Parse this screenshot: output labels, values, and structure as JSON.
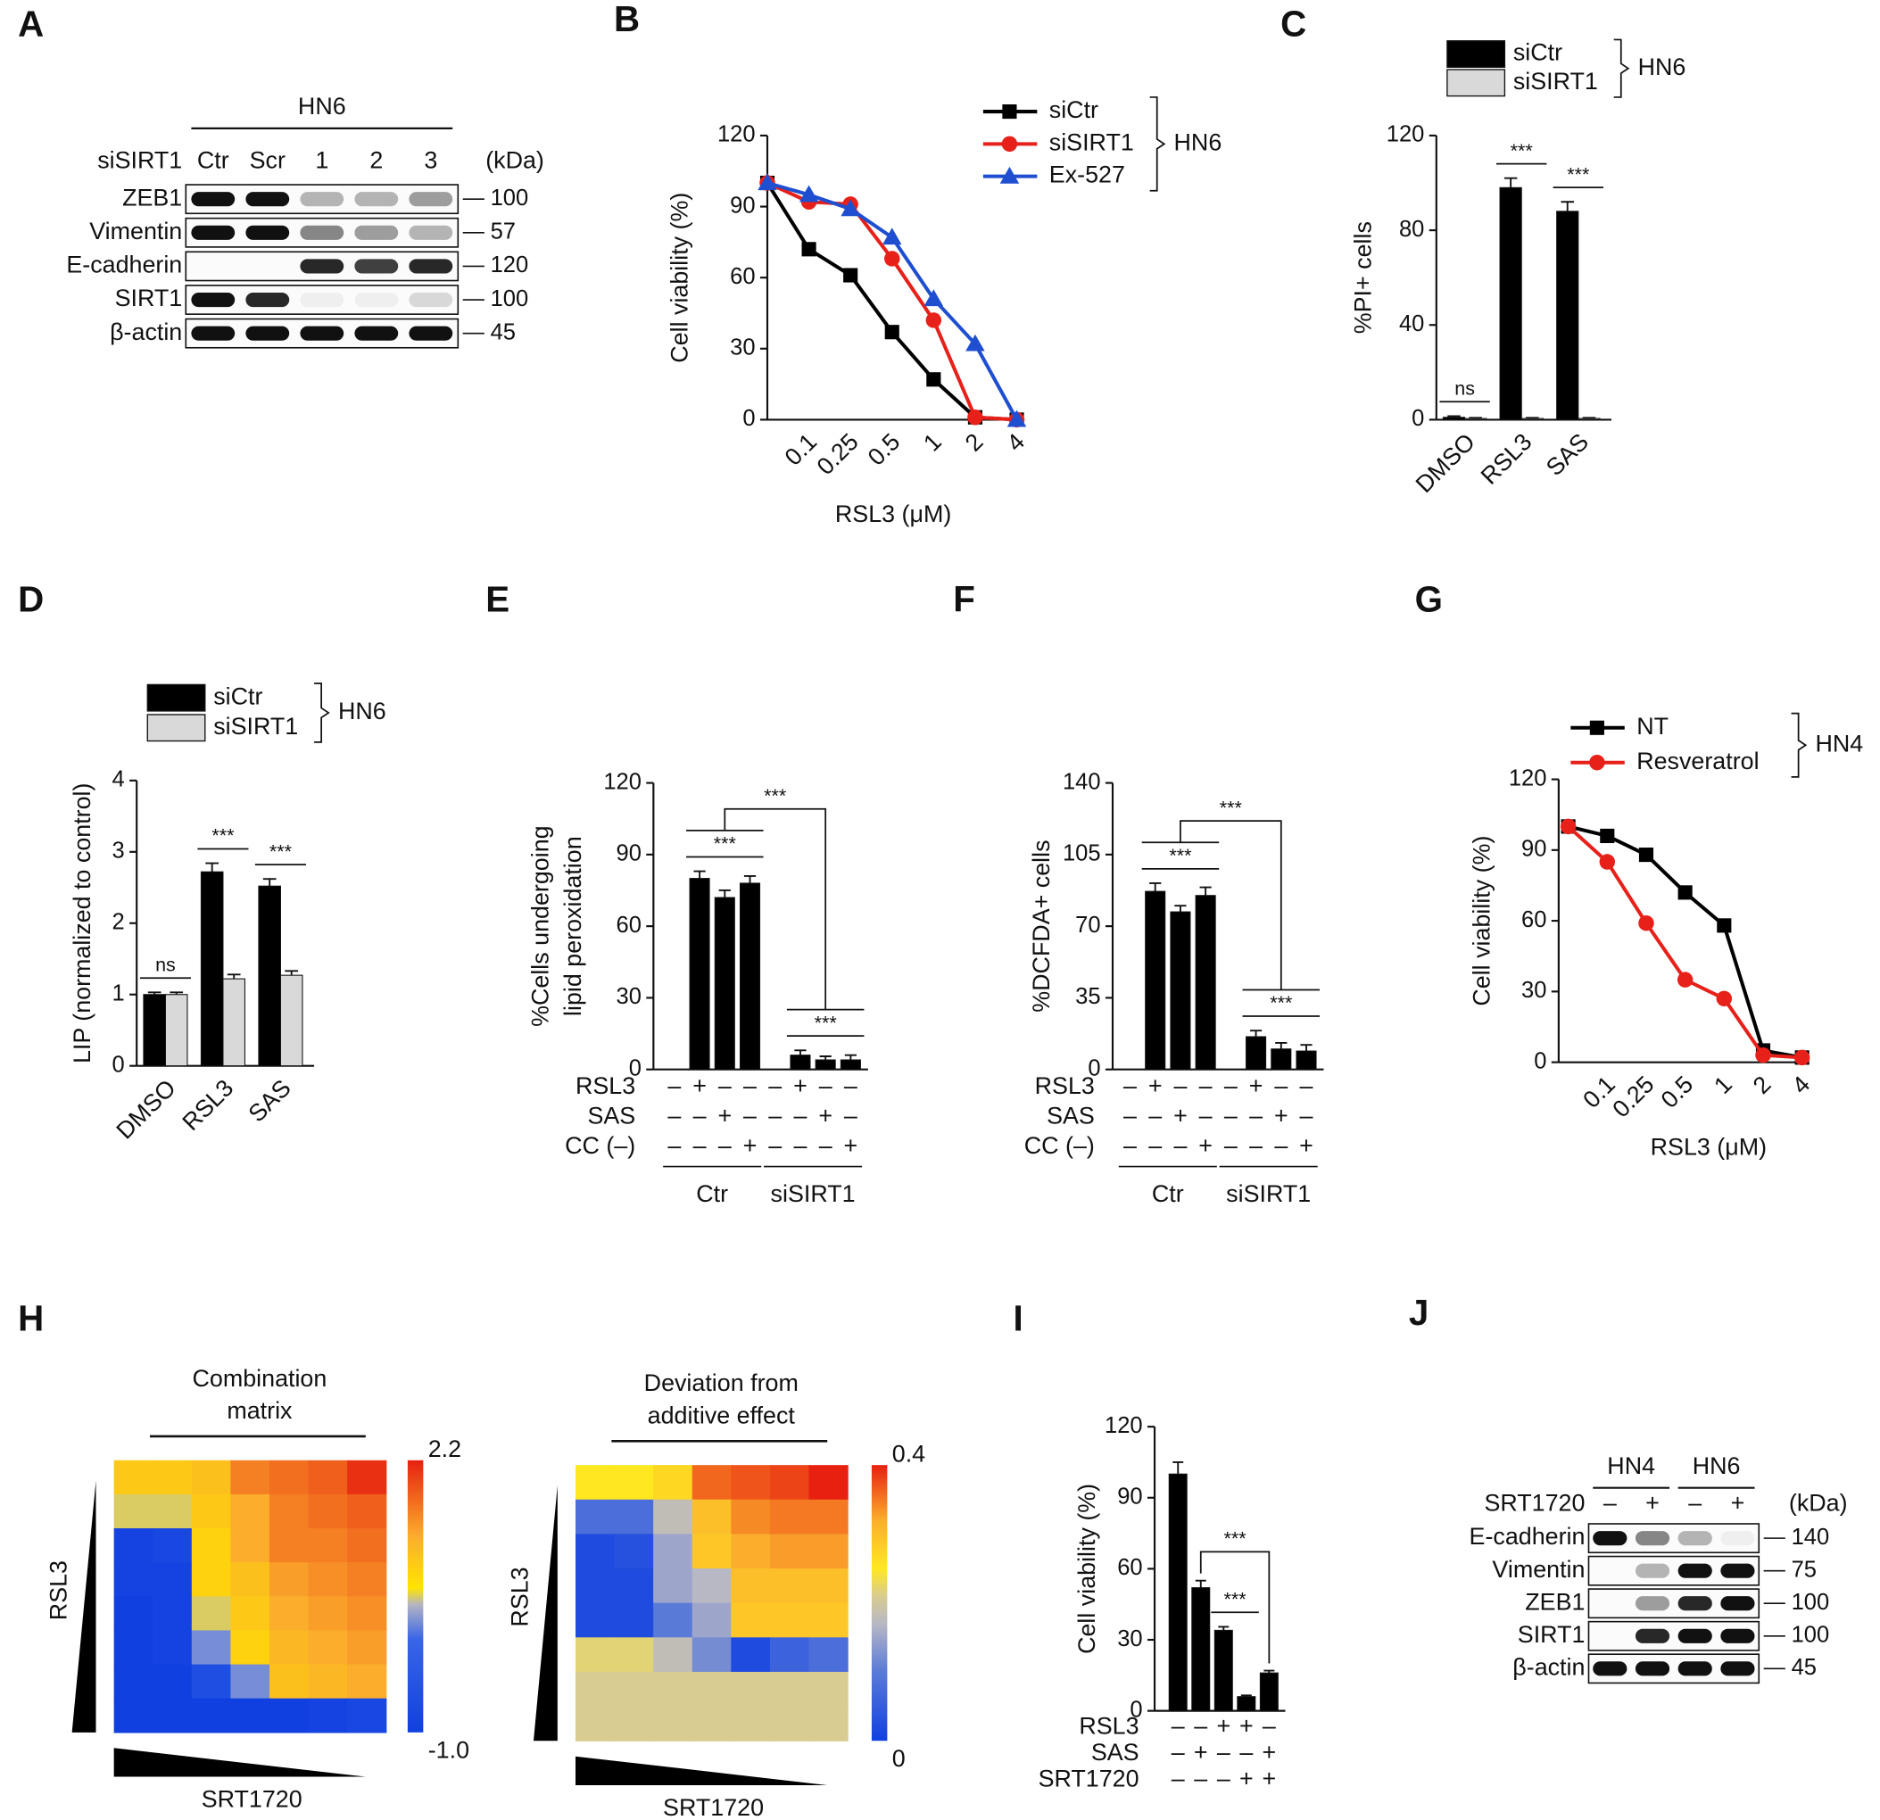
{
  "panels": [
    "A",
    "B",
    "C",
    "D",
    "E",
    "F",
    "G",
    "H",
    "I",
    "J"
  ],
  "blots": [
    {
      "groups": [
        {
          "name": "HN6",
          "lanes": [
            "Ctr",
            "Scr",
            "1",
            "2",
            "3"
          ]
        }
      ],
      "lane_label": "siSIRT1",
      "unit": "(kDa)",
      "rows": [
        {
          "name": "ZEB1",
          "kda": 100,
          "bands": [
            1,
            1,
            0.3,
            0.3,
            0.4
          ]
        },
        {
          "name": "Vimentin",
          "kda": 57,
          "bands": [
            1,
            1,
            0.5,
            0.4,
            0.3
          ]
        },
        {
          "name": "E-cadherin",
          "kda": 120,
          "bands": [
            0,
            0,
            0.9,
            0.8,
            0.9
          ]
        },
        {
          "name": "SIRT1",
          "kda": 100,
          "bands": [
            1,
            0.9,
            0.05,
            0.05,
            0.15
          ]
        },
        {
          "name": "β-actin",
          "kda": 45,
          "bands": [
            1,
            1,
            1,
            1,
            1
          ]
        }
      ]
    },
    {
      "groups": [
        {
          "name": "HN4",
          "lanes": [
            "–",
            "+"
          ]
        },
        {
          "name": "HN6",
          "lanes": [
            "–",
            "+"
          ]
        }
      ],
      "lane_label": "SRT1720",
      "unit": "(kDa)",
      "rows": [
        {
          "name": "E-cadherin",
          "kda": 140,
          "bands": [
            1,
            0.5,
            0.3,
            0.05
          ]
        },
        {
          "name": "Vimentin",
          "kda": 75,
          "bands": [
            0,
            0.3,
            1,
            1
          ]
        },
        {
          "name": "ZEB1",
          "kda": 100,
          "bands": [
            0,
            0.4,
            0.9,
            1
          ]
        },
        {
          "name": "SIRT1",
          "kda": 100,
          "bands": [
            0,
            0.9,
            1,
            1
          ]
        },
        {
          "name": "β-actin",
          "kda": 45,
          "bands": [
            1,
            1,
            1,
            1
          ]
        }
      ]
    }
  ],
  "chart_data": [
    {
      "type": "line",
      "ylabel": "Cell viability (%)",
      "xlabel": "RSL3 (μM)",
      "categories": [
        null,
        "0.1",
        "0.25",
        "0.5",
        "1",
        "2",
        "4"
      ],
      "ylim": [
        0,
        120
      ],
      "yticks": [
        0,
        30,
        60,
        90,
        120
      ],
      "legend_group": "HN6",
      "series": [
        {
          "name": "siCtr",
          "color": "#000000",
          "marker": "square",
          "values": [
            100,
            72,
            61,
            37,
            17,
            1,
            0
          ]
        },
        {
          "name": "siSIRT1",
          "color": "#e8201a",
          "marker": "circle",
          "values": [
            100,
            92,
            91,
            68,
            42,
            1,
            0
          ]
        },
        {
          "name": "Ex-527",
          "color": "#1f4fd0",
          "marker": "triangle",
          "values": [
            100,
            95,
            89,
            77,
            51,
            32,
            0
          ]
        }
      ]
    },
    {
      "type": "bar",
      "ylabel": "%PI+ cells",
      "categories": [
        "DMSO",
        "RSL3",
        "SAS"
      ],
      "ylim": [
        0,
        120
      ],
      "yticks": [
        0,
        40,
        80,
        120
      ],
      "legend_group": "HN6",
      "series": [
        {
          "name": "siCtr",
          "color": "#000000",
          "values": [
            1,
            98,
            88
          ],
          "errors": [
            0.5,
            4,
            4
          ]
        },
        {
          "name": "siSIRT1",
          "color": "#d9d9d9",
          "values": [
            0.5,
            0.5,
            0.5
          ],
          "errors": [
            0.3,
            0.3,
            0.3
          ]
        }
      ],
      "brackets": [
        {
          "label": "ns",
          "from": 0,
          "to": 0
        },
        {
          "label": "***",
          "from": 1,
          "to": 1
        },
        {
          "label": "***",
          "from": 2,
          "to": 2
        }
      ]
    },
    {
      "type": "bar",
      "ylabel": "LIP (normalized to control)",
      "categories": [
        "DMSO",
        "RSL3",
        "SAS"
      ],
      "ylim": [
        0,
        4
      ],
      "yticks": [
        0,
        1,
        2,
        3,
        4
      ],
      "legend_group": "HN6",
      "series": [
        {
          "name": "siCtr",
          "color": "#000000",
          "values": [
            1.0,
            2.72,
            2.52
          ],
          "errors": [
            0.03,
            0.12,
            0.1
          ]
        },
        {
          "name": "siSIRT1",
          "color": "#d9d9d9",
          "values": [
            1.0,
            1.22,
            1.27
          ],
          "errors": [
            0.03,
            0.06,
            0.06
          ]
        }
      ],
      "brackets": [
        {
          "label": "ns",
          "from": 0,
          "to": 0
        },
        {
          "label": "***",
          "from": 1,
          "to": 1
        },
        {
          "label": "***",
          "from": 2,
          "to": 2
        }
      ]
    },
    {
      "type": "bar",
      "ylabel": [
        "%Cells undergoing",
        "lipid peroxidation"
      ],
      "ylim": [
        0,
        120
      ],
      "yticks": [
        0,
        30,
        60,
        90,
        120
      ],
      "series": [
        {
          "color": "#000000",
          "values": [
            null,
            80,
            72,
            78,
            null,
            6,
            4,
            4
          ],
          "errors": [
            null,
            3,
            3,
            3,
            null,
            2,
            1.5,
            2
          ]
        }
      ],
      "conditions": [
        {
          "name": "RSL3",
          "signs": [
            "–",
            "+",
            "–",
            "–",
            "–",
            "+",
            "–",
            "–"
          ]
        },
        {
          "name": "SAS",
          "signs": [
            "–",
            "–",
            "+",
            "–",
            "–",
            "–",
            "+",
            "–"
          ]
        },
        {
          "name": "CC (–)",
          "signs": [
            "–",
            "–",
            "–",
            "+",
            "–",
            "–",
            "–",
            "+"
          ]
        }
      ],
      "groups": [
        {
          "name": "Ctr",
          "from": 0,
          "to": 3
        },
        {
          "name": "siSIRT1",
          "from": 4,
          "to": 7
        }
      ],
      "brackets": [
        {
          "label": "***",
          "from": 1,
          "to": 3
        },
        {
          "label": "***",
          "from": 5,
          "to": 7
        },
        {
          "label": "***",
          "from": 2,
          "to": 6
        }
      ]
    },
    {
      "type": "bar",
      "ylabel": "%DCFDA+ cells",
      "ylim": [
        0,
        140
      ],
      "yticks": [
        0,
        35,
        70,
        105,
        140
      ],
      "series": [
        {
          "color": "#000000",
          "values": [
            null,
            87,
            77,
            85,
            null,
            16,
            10,
            9
          ],
          "errors": [
            null,
            4,
            3,
            4,
            null,
            3,
            3,
            3
          ]
        }
      ],
      "conditions": [
        {
          "name": "RSL3",
          "signs": [
            "–",
            "+",
            "–",
            "–",
            "–",
            "+",
            "–",
            "–"
          ]
        },
        {
          "name": "SAS",
          "signs": [
            "–",
            "–",
            "+",
            "–",
            "–",
            "–",
            "+",
            "–"
          ]
        },
        {
          "name": "CC (–)",
          "signs": [
            "–",
            "–",
            "–",
            "+",
            "–",
            "–",
            "–",
            "+"
          ]
        }
      ],
      "groups": [
        {
          "name": "Ctr",
          "from": 0,
          "to": 3
        },
        {
          "name": "siSIRT1",
          "from": 4,
          "to": 7
        }
      ],
      "brackets": [
        {
          "label": "***",
          "from": 1,
          "to": 3
        },
        {
          "label": "***",
          "from": 5,
          "to": 7
        },
        {
          "label": "***",
          "from": 2,
          "to": 6
        }
      ]
    },
    {
      "type": "line",
      "ylabel": "Cell viability (%)",
      "xlabel": "RSL3 (μM)",
      "categories": [
        null,
        "0.1",
        "0.25",
        "0.5",
        "1",
        "2",
        "4"
      ],
      "ylim": [
        0,
        120
      ],
      "yticks": [
        0,
        30,
        60,
        90,
        120
      ],
      "legend_group": "HN4",
      "series": [
        {
          "name": "NT",
          "color": "#000000",
          "marker": "square",
          "values": [
            100,
            96,
            88,
            72,
            58,
            5,
            2
          ]
        },
        {
          "name": "Resveratrol",
          "color": "#e8201a",
          "marker": "circle",
          "values": [
            100,
            85,
            59,
            35,
            27,
            3,
            2
          ]
        }
      ]
    },
    {
      "type": "heatmap",
      "title": [
        "Combination",
        "matrix"
      ],
      "xlabel": "SRT1720",
      "ylabel": "RSL3",
      "zlim": [
        -1,
        2.2
      ],
      "zticks": [
        2.2,
        {
          "value": -1,
          "label": "-1.0"
        }
      ],
      "colorscale": [
        [
          -1,
          "#1040e0"
        ],
        [
          0.1,
          "#3a66e6"
        ],
        [
          0.5,
          "#b4b4c4"
        ],
        [
          0.7,
          "#ffe400"
        ],
        [
          1.3,
          "#fbae2c"
        ],
        [
          2.2,
          "#e82010"
        ]
      ],
      "z": [
        [
          1.0,
          1.0,
          1.1,
          1.6,
          1.7,
          1.8,
          2.1
        ],
        [
          0.6,
          0.6,
          1.0,
          1.3,
          1.6,
          1.7,
          1.8
        ],
        [
          -0.9,
          -0.8,
          0.9,
          1.3,
          1.6,
          1.6,
          1.7
        ],
        [
          -0.9,
          -0.9,
          0.9,
          1.1,
          1.4,
          1.5,
          1.6
        ],
        [
          -1.0,
          -0.9,
          0.6,
          1.0,
          1.3,
          1.4,
          1.5
        ],
        [
          -1.0,
          -0.9,
          0.3,
          0.9,
          1.2,
          1.3,
          1.4
        ],
        [
          -1.0,
          -1.0,
          -0.6,
          0.3,
          1.1,
          1.2,
          1.3
        ],
        [
          -1.0,
          -1.0,
          -1.0,
          -1.0,
          -1.0,
          -0.9,
          -0.8
        ]
      ]
    },
    {
      "type": "heatmap",
      "title": [
        "Deviation from",
        "additive effect"
      ],
      "xlabel": "SRT1720",
      "ylabel": "RSL3",
      "zlim": [
        0,
        0.4
      ],
      "zticks": [
        0.4,
        0
      ],
      "colorscale": [
        [
          0,
          "#1040e0"
        ],
        [
          0.1,
          "#5a7ad8"
        ],
        [
          0.17,
          "#b8b8c4"
        ],
        [
          0.21,
          "#d8cc90"
        ],
        [
          0.25,
          "#ffe820"
        ],
        [
          0.32,
          "#fbae2c"
        ],
        [
          0.4,
          "#e82010"
        ]
      ],
      "z": [
        [
          0.25,
          0.25,
          0.27,
          0.36,
          0.37,
          0.38,
          0.4
        ],
        [
          0.08,
          0.08,
          0.18,
          0.3,
          0.34,
          0.35,
          0.35
        ],
        [
          0.02,
          0.03,
          0.15,
          0.29,
          0.32,
          0.33,
          0.33
        ],
        [
          0.02,
          0.02,
          0.15,
          0.17,
          0.3,
          0.3,
          0.3
        ],
        [
          0.02,
          0.02,
          0.1,
          0.15,
          0.29,
          0.29,
          0.29
        ],
        [
          0.22,
          0.22,
          0.18,
          0.12,
          0.02,
          0.06,
          0.08
        ],
        [
          0.21,
          0.21,
          0.21,
          0.21,
          0.21,
          0.21,
          0.21
        ],
        [
          0.21,
          0.21,
          0.21,
          0.21,
          0.21,
          0.21,
          0.21
        ]
      ]
    },
    {
      "type": "bar",
      "ylabel": "Cell viability (%)",
      "ylim": [
        0,
        120
      ],
      "yticks": [
        0,
        30,
        60,
        90,
        120
      ],
      "series": [
        {
          "color": "#000000",
          "values": [
            100,
            52,
            34,
            6,
            16
          ],
          "errors": [
            5,
            3,
            1.5,
            0.5,
            1
          ]
        }
      ],
      "conditions": [
        {
          "name": "RSL3",
          "signs": [
            "–",
            "–",
            "+",
            "+",
            "–"
          ]
        },
        {
          "name": "SAS",
          "signs": [
            "–",
            "+",
            "–",
            "–",
            "+"
          ]
        },
        {
          "name": "SRT1720",
          "signs": [
            "–",
            "–",
            "–",
            "+",
            "+"
          ]
        }
      ],
      "brackets": [
        {
          "label": "***",
          "from": 2,
          "to": 3
        },
        {
          "label": "***",
          "from": 1,
          "to": 4
        }
      ]
    }
  ]
}
